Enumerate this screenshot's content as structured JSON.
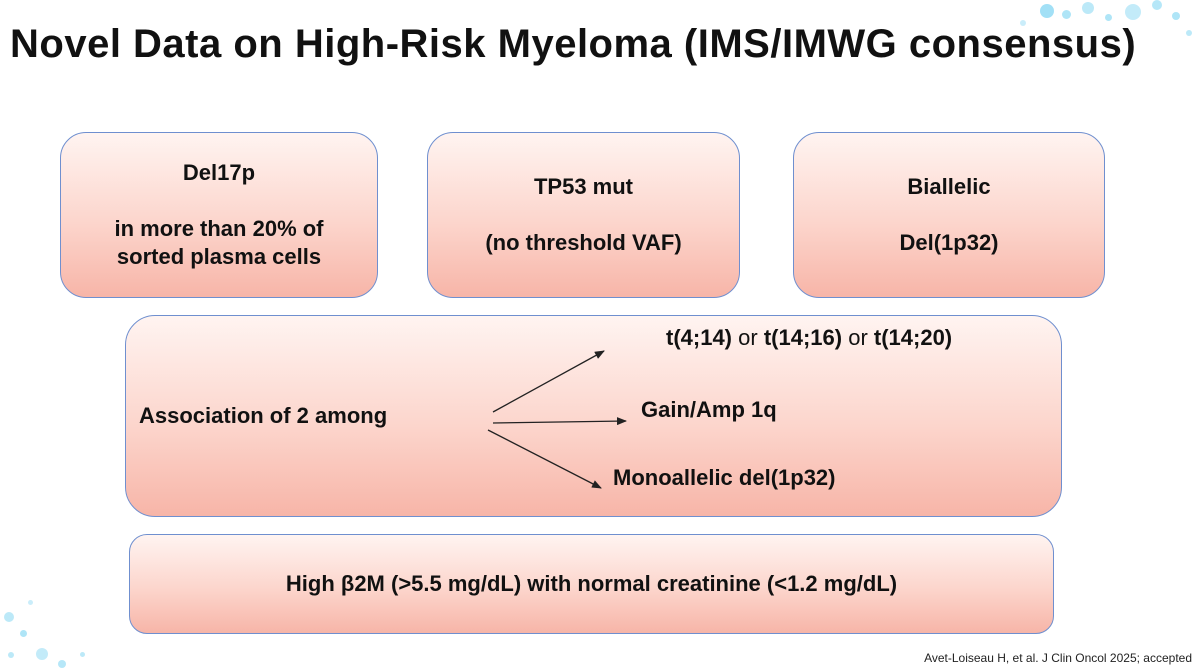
{
  "title": "Novel Data on High-Risk Myeloma (IMS/IMWG consensus)",
  "top_boxes": [
    {
      "line1": "Del17p",
      "line2": "in more than 20% of",
      "line3": "sorted plasma cells"
    },
    {
      "line1": "TP53 mut",
      "line2": "(no threshold VAF)"
    },
    {
      "line1": "Biallelic",
      "line2": "Del(1p32)"
    }
  ],
  "association": {
    "label": "Association of 2 among",
    "translocations": [
      "t(4;14)",
      "t(14;16)",
      "t(14;20)"
    ],
    "connector": "or",
    "items": [
      "Gain/Amp 1q",
      "Monoallelic del(1p32)"
    ]
  },
  "b2m_box": "High β2M (>5.5 mg/dL) with normal creatinine (<1.2 mg/dL)",
  "citation": "Avet-Loiseau H, et al. J Clin Oncol 2025; accepted",
  "colors": {
    "box_border": "#6f8fcf",
    "box_fill_top": "#fff4f1",
    "box_fill_bottom": "#f7b5a8",
    "decor": "#7ad3f2"
  }
}
